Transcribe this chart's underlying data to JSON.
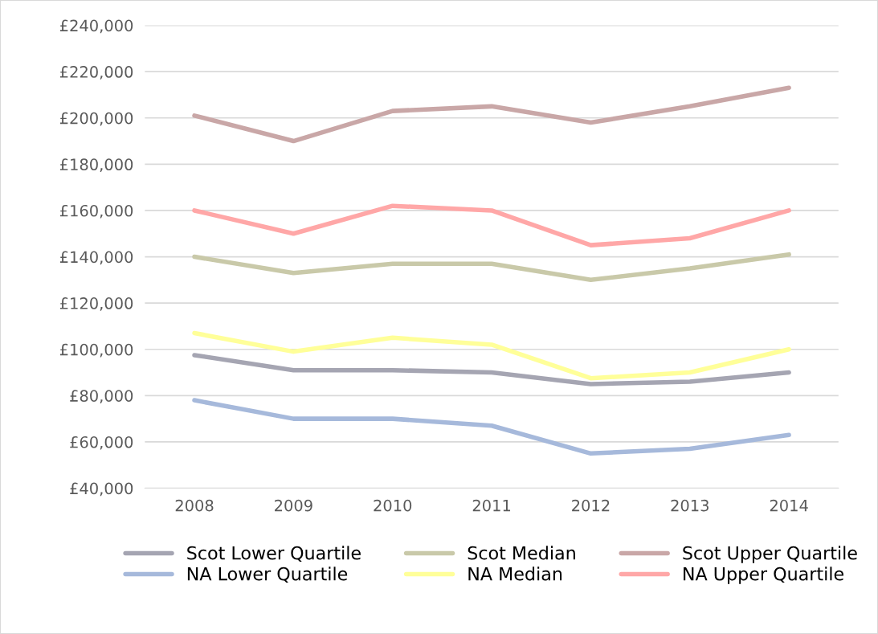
{
  "chart_data": {
    "type": "line",
    "categories": [
      "2008",
      "2009",
      "2010",
      "2011",
      "2012",
      "2013",
      "2014"
    ],
    "series": [
      {
        "name": "Scot Lower Quartile",
        "color": "#a5a5b2",
        "values": [
          97500,
          91000,
          91000,
          90000,
          85000,
          86000,
          90000
        ]
      },
      {
        "name": "Scot Median",
        "color": "#c9c9a9",
        "values": [
          140000,
          133000,
          137000,
          137000,
          130000,
          135000,
          141000
        ]
      },
      {
        "name": "Scot Upper Quartile",
        "color": "#c9a7a7",
        "values": [
          201000,
          190000,
          203000,
          205000,
          198000,
          205000,
          213000
        ]
      },
      {
        "name": "NA Lower Quartile",
        "color": "#a6b9db",
        "values": [
          78000,
          70000,
          70000,
          67000,
          55000,
          57000,
          63000
        ]
      },
      {
        "name": "NA Median",
        "color": "#ffff99",
        "values": [
          107000,
          99000,
          105000,
          102000,
          87500,
          90000,
          100000
        ]
      },
      {
        "name": "NA Upper Quartile",
        "color": "#ffa7a7",
        "values": [
          160000,
          150000,
          162000,
          160000,
          145000,
          148000,
          160000
        ]
      }
    ],
    "ylim": [
      40000,
      240000
    ],
    "yticks": [
      {
        "value": 40000,
        "label": "£40,000"
      },
      {
        "value": 60000,
        "label": "£60,000"
      },
      {
        "value": 80000,
        "label": "£80,000"
      },
      {
        "value": 100000,
        "label": "£100,000"
      },
      {
        "value": 120000,
        "label": "£120,000"
      },
      {
        "value": 140000,
        "label": "£140,000"
      },
      {
        "value": 160000,
        "label": "£160,000"
      },
      {
        "value": 180000,
        "label": "£180,000"
      },
      {
        "value": 200000,
        "label": "£200,000"
      },
      {
        "value": 220000,
        "label": "£220,000"
      },
      {
        "value": 240000,
        "label": "£240,000"
      }
    ],
    "grid": "y",
    "legend": "bottom",
    "marker": "none",
    "line_style": "solid"
  }
}
